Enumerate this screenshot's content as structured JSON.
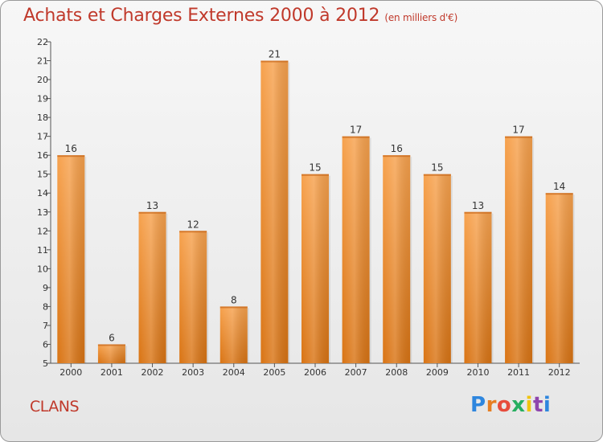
{
  "header": {
    "title": "Achats et Charges Externes 2000 à 2012",
    "subtitle": "(en milliers d'€)"
  },
  "footer": {
    "city": "CLANS",
    "logo_text": "Proxiti"
  },
  "chart_data": {
    "type": "bar",
    "title": "Achats et Charges Externes 2000 à 2012",
    "subtitle": "(en milliers d'€)",
    "xlabel": "",
    "ylabel": "",
    "categories": [
      "2000",
      "2001",
      "2002",
      "2003",
      "2004",
      "2005",
      "2006",
      "2007",
      "2008",
      "2009",
      "2010",
      "2011",
      "2012"
    ],
    "values": [
      16,
      6,
      13,
      12,
      8,
      21,
      15,
      17,
      16,
      15,
      13,
      17,
      14
    ],
    "ylim": [
      5,
      22
    ],
    "yticks": [
      5,
      6,
      7,
      8,
      9,
      10,
      11,
      12,
      13,
      14,
      15,
      16,
      17,
      18,
      19,
      20,
      21,
      22
    ],
    "grid": false,
    "bar_color": "#f0922e",
    "axis_color": "#555555",
    "label_color": "#333333"
  },
  "colors": {
    "title": "#c0392b",
    "logo": [
      "#2e86de",
      "#e67e22",
      "#e74c3c",
      "#27ae60",
      "#f1c40f",
      "#8e44ad",
      "#2e86de"
    ]
  }
}
